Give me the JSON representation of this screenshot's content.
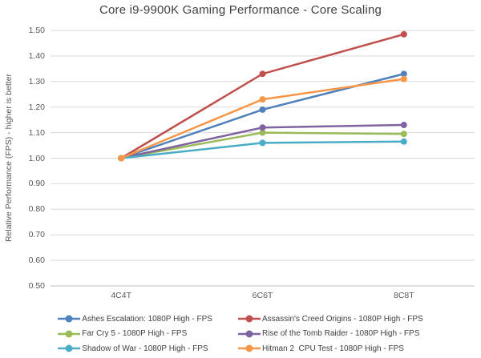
{
  "chart_data": {
    "type": "line",
    "title": "Core i9-9900K Gaming Performance - Core Scaling",
    "xlabel": "",
    "ylabel": "Relative Performance (FPS) - higher is better",
    "categories": [
      "4C4T",
      "6C6T",
      "8C8T"
    ],
    "ylim": [
      0.5,
      1.5
    ],
    "ytick_step": 0.1,
    "ytick_labels": [
      "1.50",
      "1.40",
      "1.30",
      "1.20",
      "1.10",
      "1.00",
      "0.90",
      "0.80",
      "0.70",
      "0.60",
      "0.50"
    ],
    "grid": true,
    "legend_position": "bottom",
    "series": [
      {
        "name": "Ashes Escalation: 1080P High - FPS",
        "color": "#4F81BD",
        "values": [
          1.0,
          1.19,
          1.33
        ]
      },
      {
        "name": "Assassin's Creed Origins - 1080P High - FPS",
        "color": "#C0504D",
        "values": [
          1.0,
          1.33,
          1.485
        ]
      },
      {
        "name": "Far Cry 5 - 1080P High - FPS",
        "color": "#9BBB59",
        "values": [
          1.0,
          1.1,
          1.095
        ]
      },
      {
        "name": "Rise of the Tomb Raider - 1080P High - FPS",
        "color": "#8064A2",
        "values": [
          1.0,
          1.12,
          1.13
        ]
      },
      {
        "name": "Shadow of War - 1080P High - FPS",
        "color": "#4BACC6",
        "values": [
          1.0,
          1.06,
          1.065
        ]
      },
      {
        "name": "Hitman 2  CPU Test - 1080P High - FPS",
        "color": "#F79646",
        "values": [
          1.0,
          1.23,
          1.31
        ]
      }
    ],
    "colors": {
      "gridline": "#D9D9D9",
      "axis_line": "#BFBFBF",
      "title_text": "#404040",
      "axis_text": "#595959",
      "legend_text": "#404040",
      "background": "#FFFFFF"
    }
  }
}
